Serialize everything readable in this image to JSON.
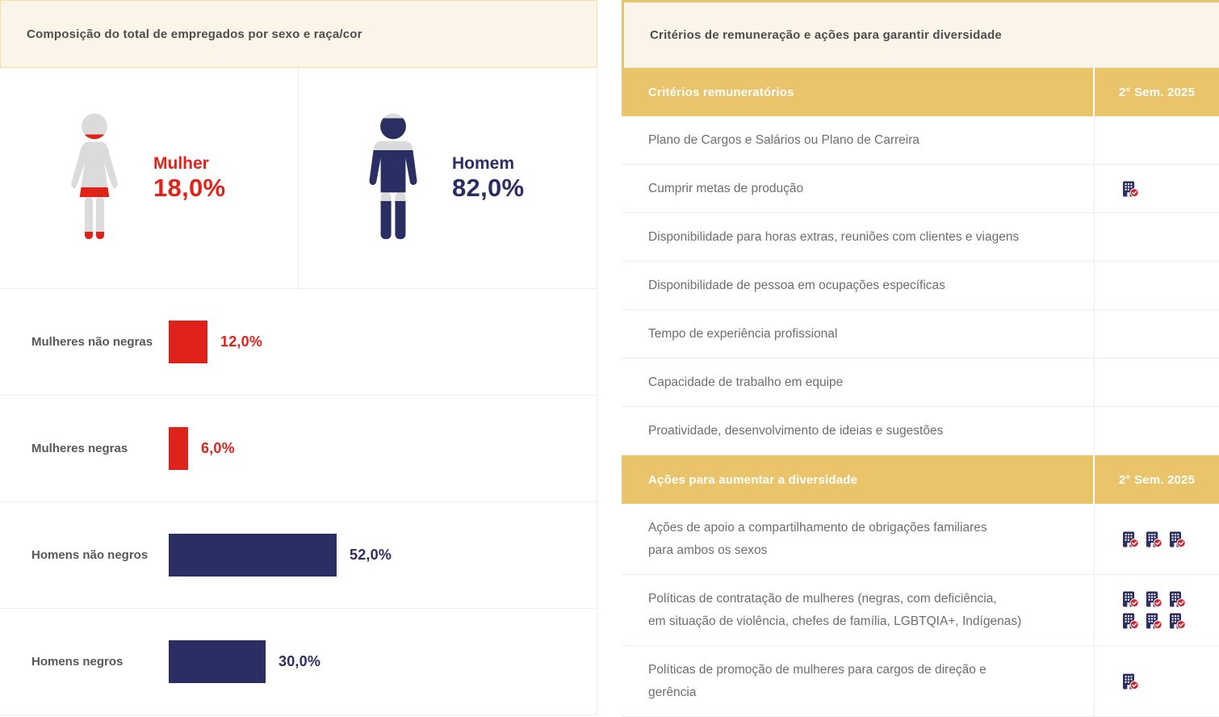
{
  "colors": {
    "red": "#DF231B",
    "navy": "#2B2E62",
    "gold": "#E9C46A",
    "gold_border": "#F1DEAC",
    "cream": "#FBF5E9",
    "person_gray": "#DBDBDB",
    "badge_red": "#D6232E",
    "divider": "#EDEDED",
    "title_text": "#4D4D4F",
    "row_text": "#6D6E71",
    "bar_label_text": "#58585A"
  },
  "icons": {
    "female-person-icon": "woman silhouette pictogram (filled red from bottom by female share)",
    "male-person-icon": "man silhouette pictogram (filled navy from bottom by male share)",
    "building-check-icon": "navy building with red check badge — criterion/action adopted by company"
  },
  "left_panel": {
    "title": "Composição do total de empregados por sexo e raça/cor"
  },
  "right_panel": {
    "title": "Critérios de remuneração e ações para garantir diversidade",
    "sections": [
      {
        "header": "Critérios remuneratórios",
        "period": "2° Sem. 2025",
        "rows": [
          {
            "label": "Plano de Cargos e Salários ou Plano de Carreira",
            "checks": 0
          },
          {
            "label": "Cumprir metas de produção",
            "checks": 1
          },
          {
            "label": "Disponibilidade para horas extras, reuniões com clientes e viagens",
            "checks": 0
          },
          {
            "label": "Disponibilidade de pessoa em ocupações específicas",
            "checks": 0
          },
          {
            "label": "Tempo de experiência profissional",
            "checks": 0
          },
          {
            "label": "Capacidade de trabalho em equipe",
            "checks": 0
          },
          {
            "label": "Proatividade, desenvolvimento de ideias e sugestões",
            "checks": 0
          }
        ]
      },
      {
        "header": "Ações para aumentar a diversidade",
        "period": "2° Sem. 2025",
        "rows": [
          {
            "label": "Ações de apoio a compartilhamento de obrigações familiares\npara ambos os sexos",
            "checks": 3
          },
          {
            "label": "Políticas de contratação de mulheres (negras, com deficiência,\nem situação de violência, chefes de família, LGBTQIA+, Indígenas)",
            "checks": 6
          },
          {
            "label": "Políticas de promoção de mulheres para cargos de direção e\ngerência",
            "checks": 1
          }
        ]
      }
    ]
  },
  "chart_data": [
    {
      "type": "pie",
      "title": "Composição do total de empregados por sexo",
      "labels": [
        "Mulher",
        "Homem"
      ],
      "values": [
        18.0,
        82.0
      ],
      "display_values": [
        "18,0%",
        "82,0%"
      ],
      "colors": [
        "#DF231B",
        "#2B2E62"
      ],
      "rendering": "person pictograms filled from bottom by percentage"
    },
    {
      "type": "bar",
      "title": "Composição do total de empregados por raça/cor",
      "orientation": "horizontal",
      "categories": [
        "Mulheres não negras",
        "Mulheres negras",
        "Homens não negros",
        "Homens negros"
      ],
      "values": [
        12.0,
        6.0,
        52.0,
        30.0
      ],
      "display_values": [
        "12,0%",
        "6,0%",
        "52,0%",
        "30,0%"
      ],
      "colors": [
        "#DF231B",
        "#DF231B",
        "#2B2E62",
        "#2B2E62"
      ],
      "xlim": [
        0,
        100
      ],
      "unit": "%",
      "grid": false,
      "value_labels": "end of bar"
    }
  ]
}
